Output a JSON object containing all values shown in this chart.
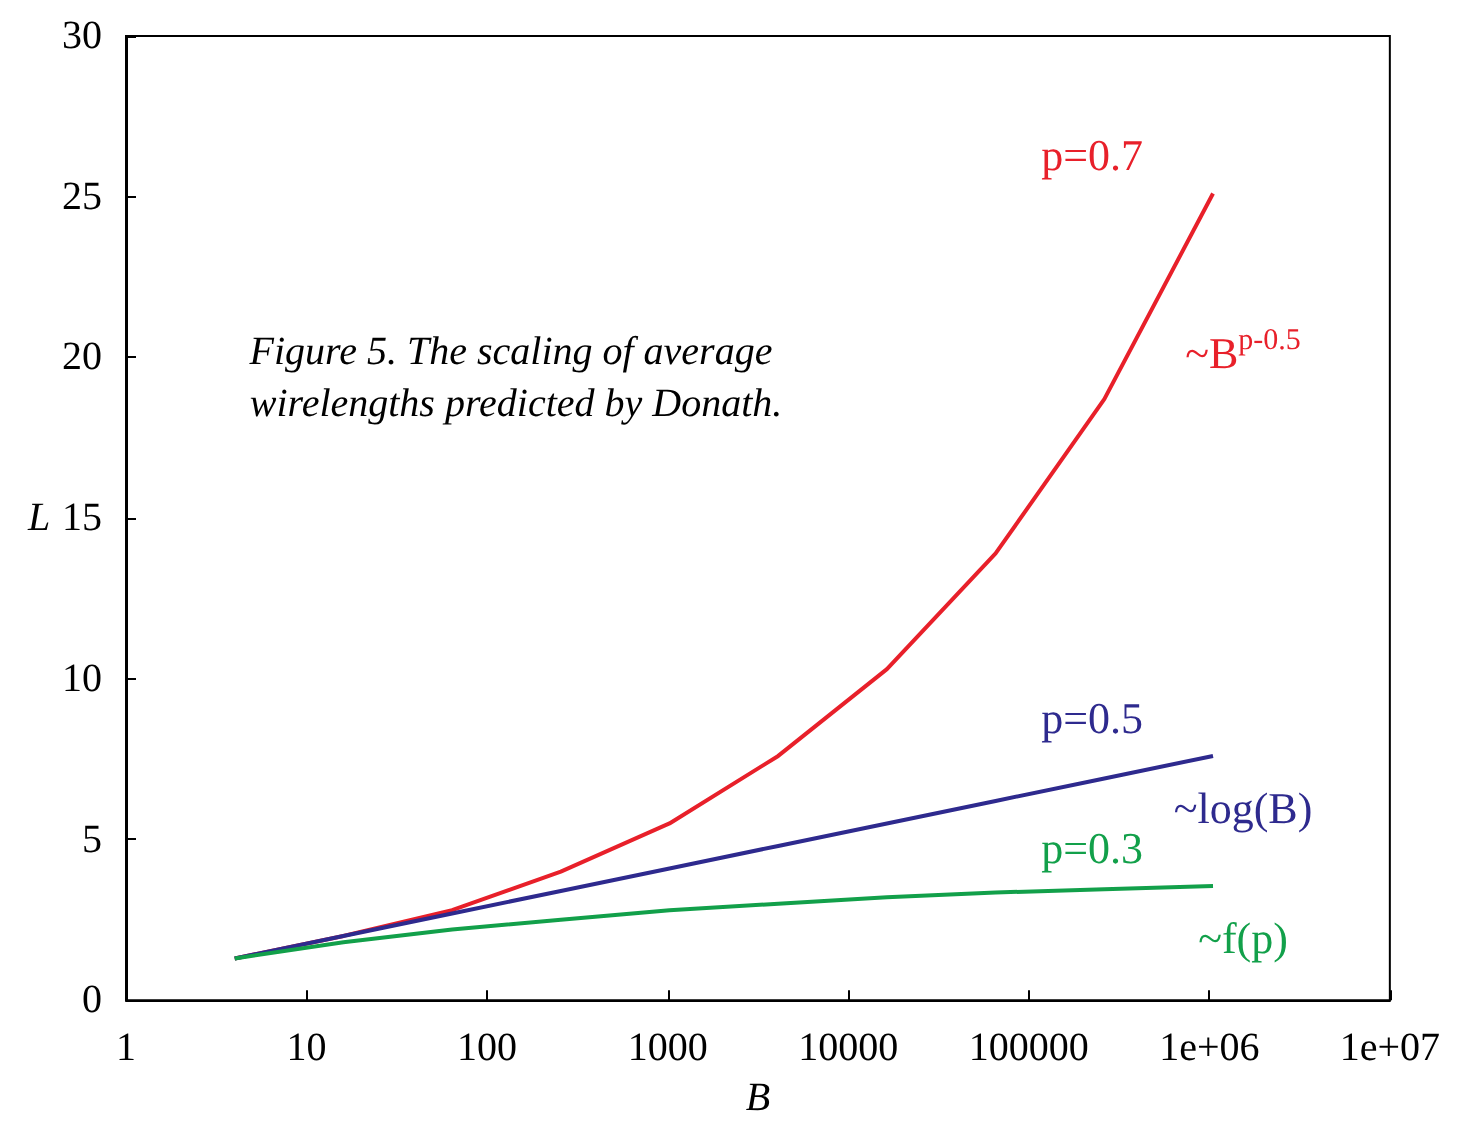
{
  "chart_data": {
    "type": "line",
    "xlabel": "B",
    "ylabel": "L",
    "log": "x",
    "grid": false,
    "legend": false,
    "marker": "none",
    "line_style": "solid",
    "x": [
      4,
      16,
      64,
      256,
      1024,
      4096,
      16384,
      65536,
      262144,
      1048576
    ],
    "xlim": [
      1,
      10000000
    ],
    "xticks": [
      1,
      10,
      100,
      1000,
      10000,
      100000,
      {
        "value": 1000000,
        "label": "1e+06"
      },
      {
        "value": 10000000,
        "label": "1e+07"
      }
    ],
    "ylim": [
      0,
      30
    ],
    "yticks": [
      0,
      5,
      10,
      15,
      20,
      25,
      30
    ],
    "series": [
      {
        "name": "p=0.7",
        "color": "#e8202a",
        "values": [
          1.3,
          2.0,
          2.8,
          4.0,
          5.5,
          7.6,
          10.3,
          13.9,
          18.7,
          25.1
        ]
      },
      {
        "name": "p=0.5",
        "color": "#2e2a8e",
        "values": [
          1.3,
          2.0,
          2.7,
          3.4,
          4.1,
          4.8,
          5.5,
          6.2,
          6.9,
          7.6
        ]
      },
      {
        "name": "p=0.3",
        "color": "#12a04a",
        "values": [
          1.3,
          1.8,
          2.2,
          2.5,
          2.8,
          3.0,
          3.2,
          3.35,
          3.45,
          3.55
        ]
      }
    ],
    "annotations": [
      "Figure 5. The scaling of average wirelengths predicted by Donath.",
      "~B$^{p-0.5}$",
      "~log(B)",
      "~f(p)"
    ]
  }
}
